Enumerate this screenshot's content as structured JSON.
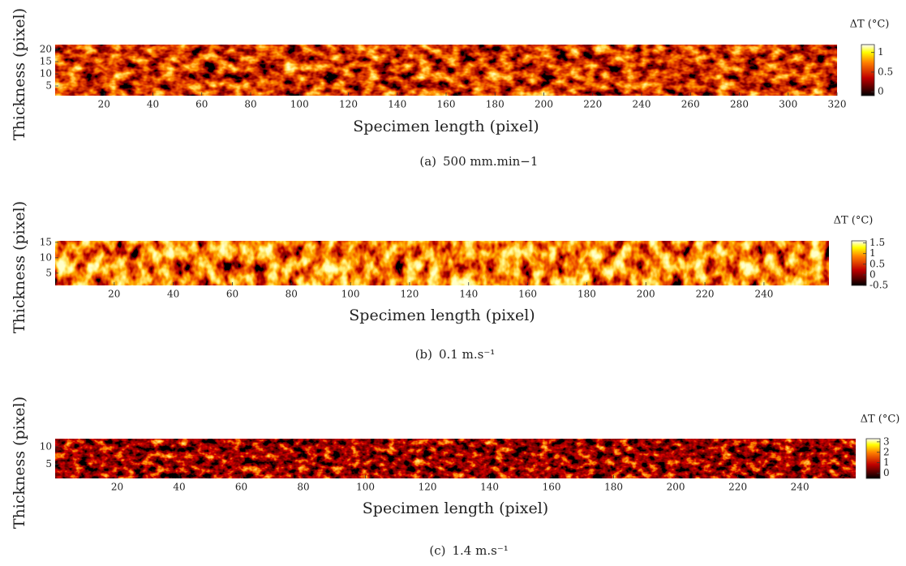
{
  "chart_data": [
    {
      "type": "heatmap",
      "xlabel": "Specimen length (pixel)",
      "ylabel": "Thickness (pixel)",
      "caption_label": "(a)",
      "caption": "500 mm.min−1",
      "colorbar_label": "ΔT (°C)",
      "xlim": [
        0,
        320
      ],
      "xticks": [
        20,
        40,
        60,
        80,
        100,
        120,
        140,
        160,
        180,
        200,
        220,
        240,
        260,
        280,
        300,
        320
      ],
      "ylim": [
        1,
        22
      ],
      "yticks": [
        5,
        10,
        15,
        20
      ],
      "clim": [
        -0.1,
        1.2
      ],
      "cticks": [
        0,
        0.5,
        1
      ],
      "colormap": "hot"
    },
    {
      "type": "heatmap",
      "xlabel": "Specimen length (pixel)",
      "ylabel": "Thickness (pixel)",
      "caption_label": "(b)",
      "caption": "0.1 m.s⁻¹",
      "colorbar_label": "ΔT (°C)",
      "xlim": [
        0,
        262
      ],
      "xticks": [
        20,
        40,
        60,
        80,
        100,
        120,
        140,
        160,
        180,
        200,
        220,
        240
      ],
      "ylim": [
        1,
        15.5
      ],
      "yticks": [
        5,
        10,
        15
      ],
      "clim": [
        -0.5,
        1.6
      ],
      "cticks": [
        -0.5,
        0,
        0.5,
        1,
        1.5
      ],
      "colormap": "hot"
    },
    {
      "type": "heatmap",
      "xlabel": "Specimen length (pixel)",
      "ylabel": "Thickness (pixel)",
      "caption_label": "(c)",
      "caption": "1.4 m.s⁻¹",
      "colorbar_label": "ΔT (°C)",
      "xlim": [
        0,
        258
      ],
      "xticks": [
        20,
        40,
        60,
        80,
        100,
        120,
        140,
        160,
        180,
        200,
        220,
        240
      ],
      "ylim": [
        1,
        12.3
      ],
      "yticks": [
        5,
        10
      ],
      "clim": [
        -0.5,
        3.3
      ],
      "cticks": [
        0,
        1,
        2,
        3
      ],
      "colormap": "hot"
    }
  ]
}
